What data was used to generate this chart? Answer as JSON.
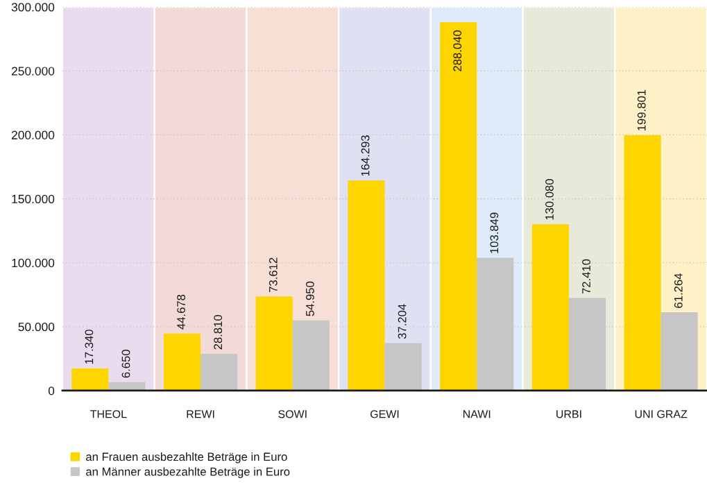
{
  "chart_data": {
    "type": "bar",
    "categories": [
      "THEOL",
      "REWI",
      "SOWI",
      "GEWI",
      "NAWI",
      "URBI",
      "UNI GRAZ"
    ],
    "series": [
      {
        "name": "an Frauen ausbezahlte Beträge in Euro",
        "color": "#ffd500",
        "values": [
          17340,
          44678,
          73612,
          164293,
          288040,
          130080,
          199801
        ],
        "value_labels": [
          "17.340",
          "44.678",
          "73.612",
          "164.293",
          "288.040",
          "130.080",
          "199.801"
        ]
      },
      {
        "name": "an Männer ausbezahlte Beträge in Euro",
        "color": "#c6c6c6",
        "values": [
          6650,
          28810,
          54950,
          37204,
          103849,
          72410,
          61264
        ],
        "value_labels": [
          "6.650",
          "28.810",
          "54.950",
          "37.204",
          "103.849",
          "72.410",
          "61.264"
        ]
      }
    ],
    "ylim": [
      0,
      300000
    ],
    "yticks": [
      0,
      {
        "value": 50000,
        "label": "50.000"
      },
      {
        "value": 100000,
        "label": "100.000"
      },
      {
        "value": 150000,
        "label": "150.000"
      },
      {
        "value": 200000,
        "label": "200.000"
      },
      {
        "value": 250000,
        "label": "250.000"
      },
      {
        "value": 300000,
        "label": "300.000"
      }
    ],
    "grid": "y",
    "legend": "bottom left",
    "bands": [
      {
        "axis": "x",
        "from": "THEOL",
        "to": "THEOL",
        "color": "#e8dcee"
      },
      {
        "axis": "x",
        "from": "REWI",
        "to": "REWI",
        "color": "#f2dad6"
      },
      {
        "axis": "x",
        "from": "SOWI",
        "to": "SOWI",
        "color": "#f8dfd5"
      },
      {
        "axis": "x",
        "from": "GEWI",
        "to": "GEWI",
        "color": "#dfe0f1"
      },
      {
        "axis": "x",
        "from": "NAWI",
        "to": "NAWI",
        "color": "#deebf8"
      },
      {
        "axis": "x",
        "from": "URBI",
        "to": "URBI",
        "color": "#e9e9da"
      },
      {
        "axis": "x",
        "from": "UNI GRAZ",
        "to": "UNI GRAZ",
        "color": "#fef0c7"
      }
    ]
  }
}
